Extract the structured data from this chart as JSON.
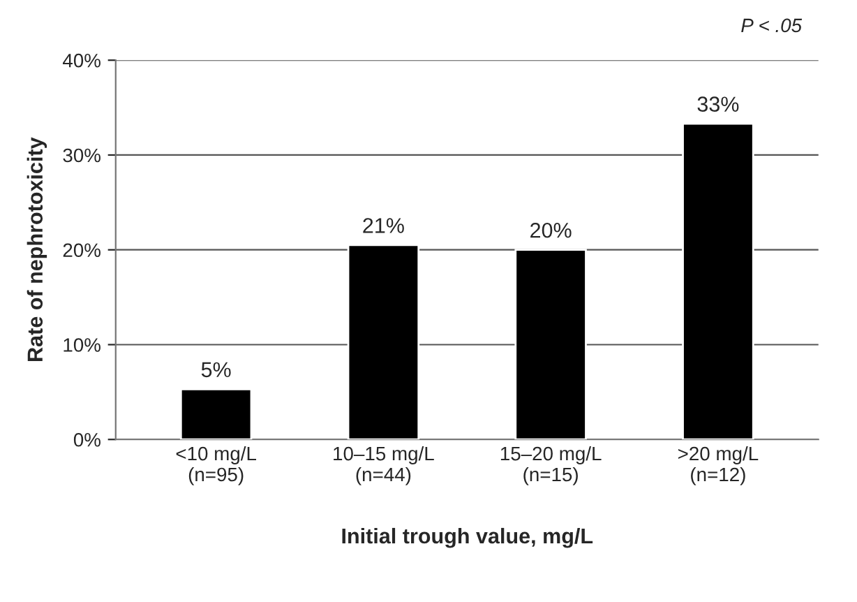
{
  "chart_data": {
    "type": "bar",
    "categories": [
      "<10 mg/L\n(n=95)",
      "10–15 mg/L\n(n=44)",
      "15–20 mg/L\n(n=15)",
      ">20 mg/L\n(n=12)"
    ],
    "values": [
      5.3,
      20.5,
      20.0,
      33.3
    ],
    "value_labels": [
      "5%",
      "21%",
      "20%",
      "33%"
    ],
    "color": "#000000",
    "xlabel": "Initial trough value, mg/L",
    "ylabel": "Rate of nephrotoxicity",
    "ylim": [
      0,
      40
    ],
    "yticks": [
      {
        "value": 0,
        "label": "0%"
      },
      {
        "value": 10,
        "label": "10%"
      },
      {
        "value": 20,
        "label": "20%"
      },
      {
        "value": 30,
        "label": "30%"
      },
      {
        "value": 40,
        "label": "40%"
      }
    ],
    "grid": "y",
    "annotations": [
      "P < .05"
    ]
  }
}
